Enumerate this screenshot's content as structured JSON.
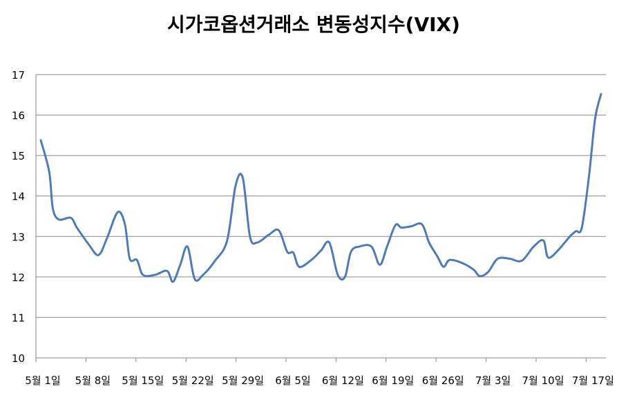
{
  "chart_data": {
    "type": "line",
    "title": "시가코옵션거래소 변동성지수(VIX)",
    "xlabel": "",
    "ylabel": "",
    "ylim": [
      10,
      17
    ],
    "yticks": [
      "10",
      "11",
      "12",
      "13",
      "14",
      "15",
      "16",
      "17"
    ],
    "xticks": [
      "5월 1일",
      "5월 8일",
      "5월 15일",
      "5월 22일",
      "5월 29일",
      "6월 5일",
      "6월 12일",
      "6월 19일",
      "6월 26일",
      "7월 3일",
      "7월 10일",
      "7월 17일"
    ],
    "grid": true,
    "legend": "none",
    "series_color": "#4f7ab3",
    "series": [
      {
        "values": [
          [
            0,
            15.38
          ],
          [
            0.7,
            14.6
          ],
          [
            1.0,
            13.7
          ],
          [
            1.5,
            13.42
          ],
          [
            2.5,
            13.46
          ],
          [
            3.0,
            13.22
          ],
          [
            4.0,
            12.8
          ],
          [
            4.8,
            12.54
          ],
          [
            5.5,
            12.95
          ],
          [
            6.4,
            13.6
          ],
          [
            7.0,
            13.3
          ],
          [
            7.4,
            12.45
          ],
          [
            8.0,
            12.42
          ],
          [
            8.5,
            12.05
          ],
          [
            9.5,
            12.05
          ],
          [
            10.5,
            12.15
          ],
          [
            11.0,
            11.88
          ],
          [
            11.6,
            12.3
          ],
          [
            12.2,
            12.75
          ],
          [
            12.8,
            11.95
          ],
          [
            13.5,
            12.05
          ],
          [
            14.5,
            12.4
          ],
          [
            15.5,
            12.9
          ],
          [
            16.2,
            14.25
          ],
          [
            16.8,
            14.45
          ],
          [
            17.4,
            13.0
          ],
          [
            18.0,
            12.85
          ],
          [
            19.0,
            13.05
          ],
          [
            19.8,
            13.15
          ],
          [
            20.5,
            12.62
          ],
          [
            21.0,
            12.6
          ],
          [
            21.5,
            12.25
          ],
          [
            22.5,
            12.42
          ],
          [
            23.3,
            12.65
          ],
          [
            24.0,
            12.85
          ],
          [
            24.7,
            12.05
          ],
          [
            25.3,
            12.0
          ],
          [
            25.8,
            12.62
          ],
          [
            26.5,
            12.75
          ],
          [
            27.5,
            12.75
          ],
          [
            28.2,
            12.3
          ],
          [
            28.8,
            12.75
          ],
          [
            29.5,
            13.28
          ],
          [
            30.0,
            13.22
          ],
          [
            30.8,
            13.25
          ],
          [
            31.7,
            13.3
          ],
          [
            32.3,
            12.85
          ],
          [
            33.0,
            12.5
          ],
          [
            33.5,
            12.25
          ],
          [
            34.0,
            12.42
          ],
          [
            35.0,
            12.35
          ],
          [
            36.0,
            12.18
          ],
          [
            36.5,
            12.02
          ],
          [
            37.2,
            12.12
          ],
          [
            38.0,
            12.45
          ],
          [
            39.0,
            12.45
          ],
          [
            40.0,
            12.4
          ],
          [
            41.0,
            12.75
          ],
          [
            41.8,
            12.9
          ],
          [
            42.2,
            12.48
          ],
          [
            43.0,
            12.65
          ],
          [
            44.0,
            13.0
          ],
          [
            44.5,
            13.13
          ],
          [
            45.0,
            13.22
          ],
          [
            45.6,
            14.5
          ],
          [
            46.1,
            15.9
          ],
          [
            46.6,
            16.52
          ]
        ]
      }
    ]
  }
}
